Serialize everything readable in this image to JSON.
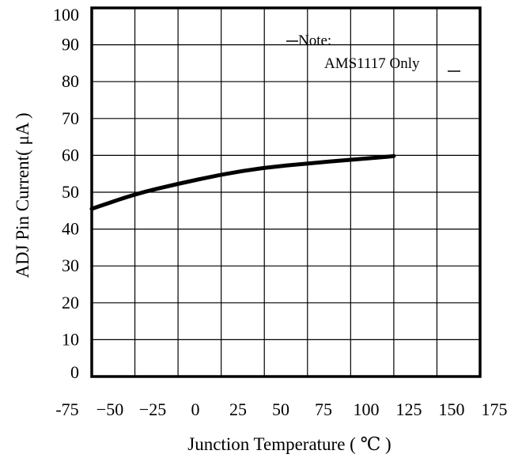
{
  "chart_data": {
    "type": "line",
    "xlabel": "Junction Temperature ( ℃ )",
    "ylabel": "ADJ Pin Current( μA )",
    "xlim": [
      -75,
      175
    ],
    "ylim": [
      0,
      100
    ],
    "x_ticks": [
      "-75",
      "−50",
      "−25",
      "0",
      "25",
      "50",
      "75",
      "100",
      "125",
      "150",
      "175"
    ],
    "y_ticks": [
      "0",
      "10",
      "20",
      "30",
      "40",
      "50",
      "60",
      "70",
      "80",
      "90",
      "100"
    ],
    "grid": true,
    "annotation": {
      "line1": "Note:",
      "line2": "AMS1117 Only"
    },
    "series": [
      {
        "x": [
          -50,
          -25,
          0,
          25,
          50,
          75,
          100,
          125
        ],
        "y": [
          45.5,
          49.5,
          52.3,
          54.8,
          56.7,
          57.8,
          58.8,
          59.8
        ]
      }
    ]
  }
}
